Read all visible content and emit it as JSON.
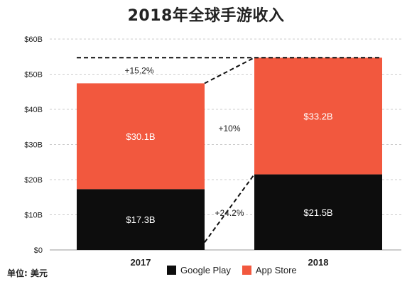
{
  "title": "2018年全球手游收入",
  "unit_label": "单位: 美元",
  "colors": {
    "google_play": "#0d0d0d",
    "app_store": "#f2583e",
    "grid": "#cccccc",
    "axis_text": "#222222",
    "bar_text": "#ffffff"
  },
  "chart_data": {
    "type": "bar",
    "stacked": true,
    "categories": [
      "2017",
      "2018"
    ],
    "series": [
      {
        "name": "Google Play",
        "values": [
          17.3,
          21.5
        ],
        "labels": [
          "$17.3B",
          "$21.5B"
        ]
      },
      {
        "name": "App Store",
        "values": [
          30.1,
          33.2
        ],
        "labels": [
          "$30.1B",
          "$33.2B"
        ]
      }
    ],
    "ylim": [
      0,
      60
    ],
    "yticks": [
      0,
      10,
      20,
      30,
      40,
      50,
      60
    ],
    "ytick_labels": [
      "$0",
      "$10B",
      "$20B",
      "$30B",
      "$40B",
      "$50B",
      "$60B"
    ],
    "grid": true,
    "legend_position": "bottom",
    "annotations": {
      "total_growth": "+15.2%",
      "app_store_growth": "+10%",
      "google_play_growth": "+24.2%"
    }
  }
}
